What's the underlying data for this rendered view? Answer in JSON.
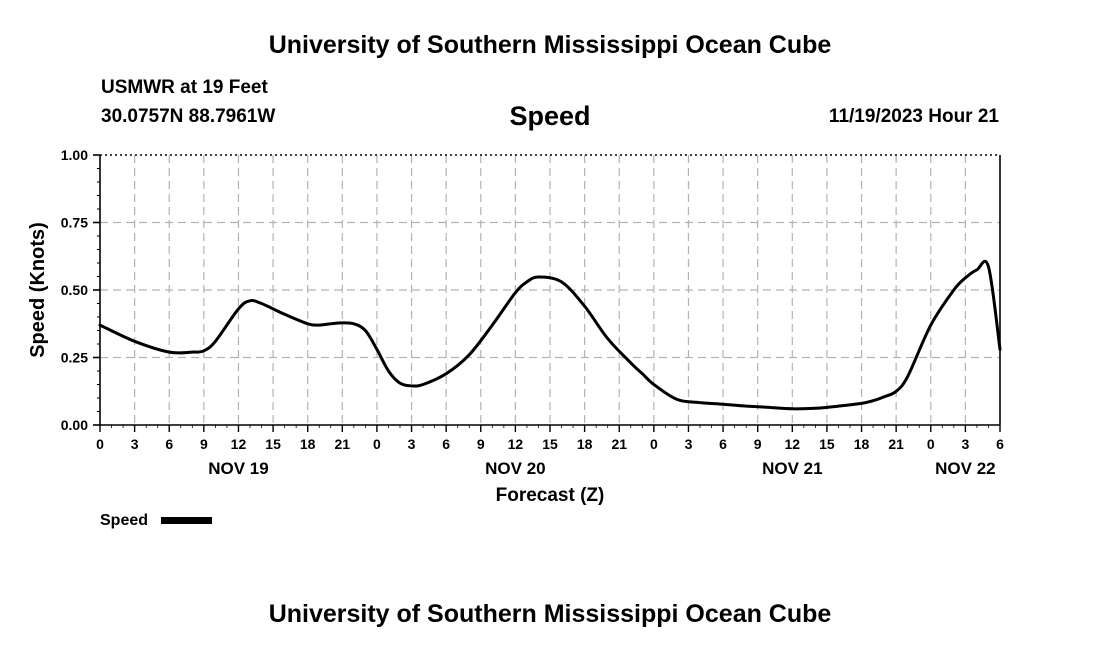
{
  "header": {
    "title": "University of Southern Mississippi Ocean Cube",
    "station": "USMWR at 19 Feet",
    "coordinates": "30.0757N  88.7961W",
    "date_hour": "11/19/2023 Hour 21"
  },
  "footer": {
    "title": "University of Southern Mississippi Ocean Cube"
  },
  "chart_data": {
    "type": "line",
    "title": "Speed",
    "xlabel": "Forecast (Z)",
    "ylabel": "Speed (Knots)",
    "ylim": [
      0,
      1
    ],
    "yticks": [
      "0.00",
      "0.25",
      "0.50",
      "0.75",
      "1.00"
    ],
    "xlim_hours": [
      0,
      78
    ],
    "x_tick_labels": [
      "0",
      "3",
      "6",
      "9",
      "12",
      "15",
      "18",
      "21",
      "0",
      "3",
      "6",
      "9",
      "12",
      "15",
      "18",
      "21",
      "0",
      "3",
      "6",
      "9",
      "12",
      "15",
      "18",
      "21",
      "0",
      "3",
      "6"
    ],
    "day_labels": [
      {
        "label": "NOV 19",
        "hour": 12
      },
      {
        "label": "NOV 20",
        "hour": 36
      },
      {
        "label": "NOV 21",
        "hour": 60
      },
      {
        "label": "NOV 22",
        "hour": 75
      }
    ],
    "grid": true,
    "series": [
      {
        "name": "Speed",
        "color": "#000000",
        "x": [
          0,
          3,
          6,
          8,
          9,
          10,
          12,
          13,
          14,
          16,
          18,
          19,
          20,
          21,
          22,
          23,
          24,
          25,
          26,
          27,
          28,
          30,
          32,
          34,
          36,
          37,
          38,
          40,
          42,
          44,
          46,
          47,
          48,
          50,
          52,
          54,
          56,
          58,
          60,
          62,
          64,
          66,
          67,
          68,
          69,
          70,
          72,
          74,
          75,
          76,
          77,
          78
        ],
        "values": [
          0.37,
          0.31,
          0.27,
          0.27,
          0.275,
          0.31,
          0.43,
          0.46,
          0.45,
          0.41,
          0.375,
          0.37,
          0.375,
          0.378,
          0.375,
          0.35,
          0.28,
          0.2,
          0.155,
          0.145,
          0.15,
          0.19,
          0.26,
          0.37,
          0.49,
          0.53,
          0.548,
          0.53,
          0.44,
          0.32,
          0.23,
          0.19,
          0.15,
          0.095,
          0.083,
          0.077,
          0.07,
          0.065,
          0.06,
          0.062,
          0.07,
          0.08,
          0.09,
          0.105,
          0.125,
          0.18,
          0.37,
          0.5,
          0.545,
          0.575,
          0.586,
          0.28
        ]
      }
    ],
    "legend": {
      "label": "Speed",
      "placement": "bottom-left"
    }
  }
}
